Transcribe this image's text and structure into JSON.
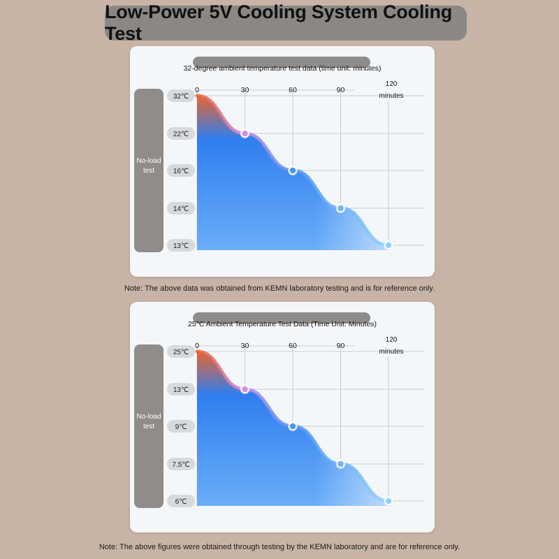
{
  "title": "Low-Power 5V Cooling System Cooling Test",
  "colors": {
    "background": "#c8b4a6",
    "panel": "#f4f7fa",
    "side_box": "#8f8c8a",
    "curve_start": "#e8652e",
    "curve_mid": "#2f7ef0",
    "curve_end": "#8fd2ff"
  },
  "charts": [
    {
      "panel_title": "32-degree ambient temperature test data (time unit: minutes)",
      "side_label": [
        "No-load",
        "test"
      ],
      "note": "Note: The above data was obtained from KEMN laboratory testing and is for reference only."
    },
    {
      "panel_title": "25°C Ambient Temperature Test Data (Time Unit: Minutes)",
      "side_label": [
        "No-load",
        "test"
      ],
      "note": "Note: The above figures were obtained through testing by the KEMN laboratory and are for reference only."
    }
  ],
  "chart_data": [
    {
      "type": "area",
      "title": "32-degree ambient temperature test data (time unit: minutes)",
      "xlabel": "minutes",
      "x_ticks": [
        "0",
        "30",
        "60",
        "90",
        "120"
      ],
      "y_ticks": [
        "32℃",
        "22℃",
        "16℃",
        "14℃",
        "13℃"
      ],
      "x": [
        0,
        30,
        60,
        90,
        120
      ],
      "values": [
        32,
        22,
        16,
        14,
        13
      ],
      "grid": true
    },
    {
      "type": "area",
      "title": "25°C Ambient Temperature Test Data (Time Unit: Minutes)",
      "xlabel": "minutes",
      "x_ticks": [
        "0",
        "30",
        "60",
        "90",
        "120"
      ],
      "y_ticks": [
        "25℃",
        "13℃",
        "9℃",
        "7.5℃",
        "6℃"
      ],
      "x": [
        0,
        30,
        60,
        90,
        120
      ],
      "values": [
        25,
        13,
        9,
        7.5,
        6
      ],
      "grid": true
    }
  ]
}
